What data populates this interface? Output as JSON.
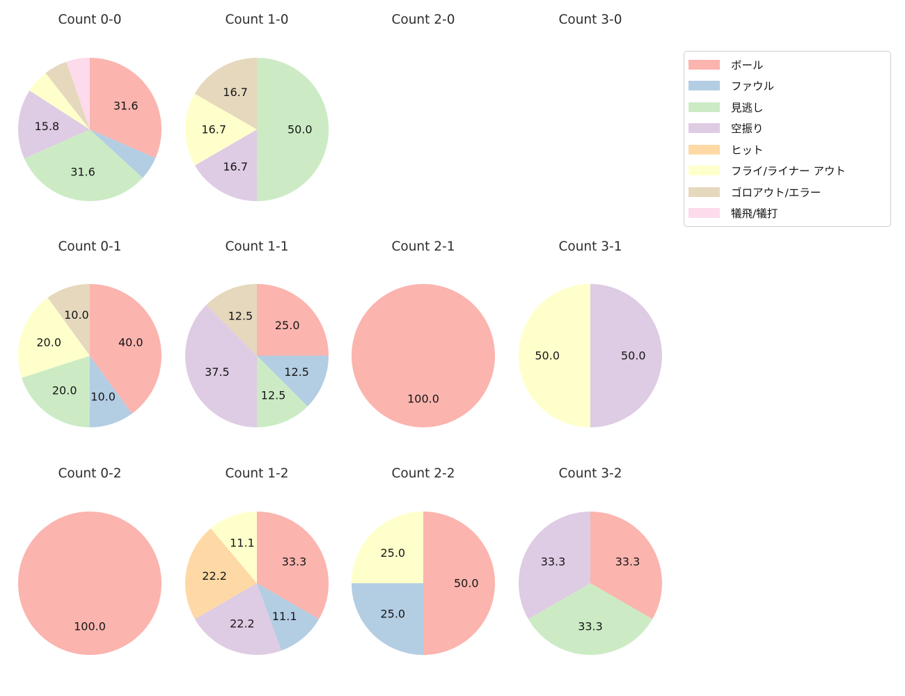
{
  "figure": {
    "background": "#ffffff"
  },
  "chart_data": {
    "type": "pie",
    "grid": {
      "rows": 3,
      "cols": 4
    },
    "legend": {
      "position": "upper right",
      "entries": [
        "ボール",
        "ファウル",
        "見逃し",
        "空振り",
        "ヒット",
        "フライ/ライナー アウト",
        "ゴロアウト/エラー",
        "犠飛/犠打"
      ]
    },
    "categories": [
      {
        "id": "ball",
        "name": "ボール",
        "color": "#fbb4ae"
      },
      {
        "id": "foul",
        "name": "ファウル",
        "color": "#b3cde3"
      },
      {
        "id": "called-strike",
        "name": "見逃し",
        "color": "#ccebc5"
      },
      {
        "id": "swinging-strike",
        "name": "空振り",
        "color": "#decbe4"
      },
      {
        "id": "hit",
        "name": "ヒット",
        "color": "#fed9a6"
      },
      {
        "id": "fly-liner-out",
        "name": "フライ/ライナー アウト",
        "color": "#ffffcc"
      },
      {
        "id": "groundout-error",
        "name": "ゴロアウト/エラー",
        "color": "#e5d8bd"
      },
      {
        "id": "sac-fly-bunt",
        "name": "犠飛/犠打",
        "color": "#fddaec"
      }
    ],
    "charts": [
      {
        "title": "Count 0-0",
        "slices": [
          {
            "category": "ボール",
            "value": 31.6,
            "label": "31.6"
          },
          {
            "category": "ファウル",
            "value": 5.3,
            "label": ""
          },
          {
            "category": "見逃し",
            "value": 31.6,
            "label": "31.6"
          },
          {
            "category": "空振り",
            "value": 15.8,
            "label": "15.8"
          },
          {
            "category": "フライ/ライナー アウト",
            "value": 5.3,
            "label": ""
          },
          {
            "category": "ゴロアウト/エラー",
            "value": 5.3,
            "label": ""
          },
          {
            "category": "犠飛/犠打",
            "value": 5.3,
            "label": ""
          }
        ]
      },
      {
        "title": "Count 1-0",
        "slices": [
          {
            "category": "見逃し",
            "value": 50.0,
            "label": "50.0"
          },
          {
            "category": "空振り",
            "value": 16.7,
            "label": "16.7"
          },
          {
            "category": "フライ/ライナー アウト",
            "value": 16.7,
            "label": "16.7"
          },
          {
            "category": "ゴロアウト/エラー",
            "value": 16.7,
            "label": "16.7"
          }
        ]
      },
      {
        "title": "Count 2-0",
        "slices": []
      },
      {
        "title": "Count 3-0",
        "slices": []
      },
      {
        "title": "Count 0-1",
        "slices": [
          {
            "category": "ボール",
            "value": 40.0,
            "label": "40.0"
          },
          {
            "category": "ファウル",
            "value": 10.0,
            "label": "10.0"
          },
          {
            "category": "見逃し",
            "value": 20.0,
            "label": "20.0"
          },
          {
            "category": "フライ/ライナー アウト",
            "value": 20.0,
            "label": "20.0"
          },
          {
            "category": "ゴロアウト/エラー",
            "value": 10.0,
            "label": "10.0"
          }
        ]
      },
      {
        "title": "Count 1-1",
        "slices": [
          {
            "category": "ボール",
            "value": 25.0,
            "label": "25.0"
          },
          {
            "category": "ファウル",
            "value": 12.5,
            "label": "12.5"
          },
          {
            "category": "見逃し",
            "value": 12.5,
            "label": "12.5"
          },
          {
            "category": "空振り",
            "value": 37.5,
            "label": "37.5"
          },
          {
            "category": "ゴロアウト/エラー",
            "value": 12.5,
            "label": "12.5"
          }
        ]
      },
      {
        "title": "Count 2-1",
        "slices": [
          {
            "category": "ボール",
            "value": 100.0,
            "label": "100.0"
          }
        ]
      },
      {
        "title": "Count 3-1",
        "slices": [
          {
            "category": "空振り",
            "value": 50.0,
            "label": "50.0"
          },
          {
            "category": "フライ/ライナー アウト",
            "value": 50.0,
            "label": "50.0"
          }
        ]
      },
      {
        "title": "Count 0-2",
        "slices": [
          {
            "category": "ボール",
            "value": 100.0,
            "label": "100.0"
          }
        ]
      },
      {
        "title": "Count 1-2",
        "slices": [
          {
            "category": "ボール",
            "value": 33.3,
            "label": "33.3"
          },
          {
            "category": "ファウル",
            "value": 11.1,
            "label": "11.1"
          },
          {
            "category": "空振り",
            "value": 22.2,
            "label": "22.2"
          },
          {
            "category": "ヒット",
            "value": 22.2,
            "label": "22.2"
          },
          {
            "category": "フライ/ライナー アウト",
            "value": 11.1,
            "label": "11.1"
          }
        ]
      },
      {
        "title": "Count 2-2",
        "slices": [
          {
            "category": "ボール",
            "value": 50.0,
            "label": "50.0"
          },
          {
            "category": "ファウル",
            "value": 25.0,
            "label": "25.0"
          },
          {
            "category": "フライ/ライナー アウト",
            "value": 25.0,
            "label": "25.0"
          }
        ]
      },
      {
        "title": "Count 3-2",
        "slices": [
          {
            "category": "ボール",
            "value": 33.3,
            "label": "33.3"
          },
          {
            "category": "見逃し",
            "value": 33.3,
            "label": "33.3"
          },
          {
            "category": "空振り",
            "value": 33.3,
            "label": "33.3"
          }
        ]
      }
    ]
  }
}
